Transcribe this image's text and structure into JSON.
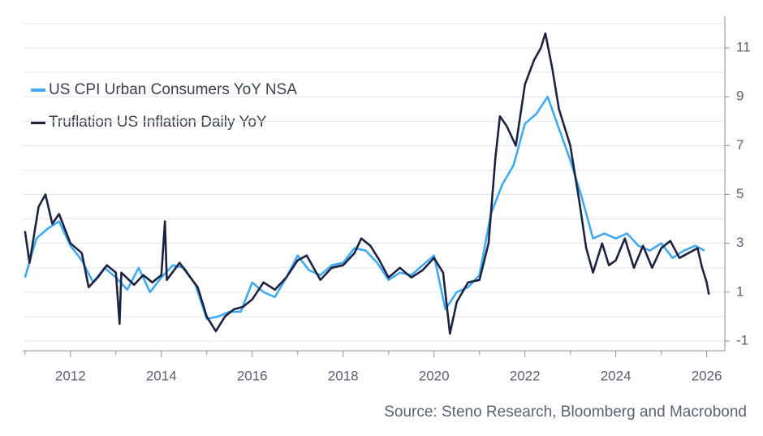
{
  "chart_data": {
    "type": "line",
    "source": "Source: Steno Research, Bloomberg and Macrobond",
    "xlim": [
      2010.95,
      2026.4
    ],
    "xticks": [
      2012,
      2014,
      2016,
      2018,
      2020,
      2022,
      2024,
      2026
    ],
    "minor_xticks": [
      2011,
      2013,
      2015,
      2017,
      2019,
      2021,
      2023,
      2025
    ],
    "ylim": [
      -1.4,
      12.3
    ],
    "yticks": [
      -1,
      1,
      3,
      5,
      7,
      9,
      11
    ],
    "minor_yticks": [
      0,
      2,
      4,
      6,
      8,
      10,
      12
    ],
    "grid": true,
    "legend": "upper left",
    "series": [
      {
        "name": "US CPI Urban Consumers YoY NSA",
        "color": "#3fa9f5",
        "x": [
          2011.0,
          2011.25,
          2011.5,
          2011.75,
          2012.0,
          2012.25,
          2012.5,
          2012.75,
          2013.0,
          2013.25,
          2013.5,
          2013.75,
          2014.0,
          2014.25,
          2014.5,
          2014.75,
          2015.0,
          2015.25,
          2015.5,
          2015.75,
          2016.0,
          2016.25,
          2016.5,
          2016.75,
          2017.0,
          2017.25,
          2017.5,
          2017.75,
          2018.0,
          2018.25,
          2018.5,
          2018.75,
          2019.0,
          2019.25,
          2019.5,
          2019.75,
          2020.0,
          2020.25,
          2020.5,
          2020.75,
          2021.0,
          2021.25,
          2021.5,
          2021.75,
          2022.0,
          2022.25,
          2022.5,
          2022.75,
          2023.0,
          2023.25,
          2023.5,
          2023.75,
          2024.0,
          2024.25,
          2024.5,
          2024.75,
          2025.0,
          2025.25,
          2025.5,
          2025.75,
          2025.95
        ],
        "values": [
          1.6,
          3.2,
          3.6,
          3.9,
          2.9,
          2.3,
          1.4,
          2.0,
          1.6,
          1.1,
          2.0,
          1.0,
          1.6,
          2.1,
          2.0,
          1.3,
          -0.1,
          0.0,
          0.2,
          0.2,
          1.4,
          1.0,
          0.8,
          1.6,
          2.5,
          1.9,
          1.7,
          2.1,
          2.2,
          2.8,
          2.7,
          2.2,
          1.5,
          1.8,
          1.7,
          2.1,
          2.5,
          0.3,
          1.0,
          1.2,
          1.7,
          4.2,
          5.4,
          6.2,
          7.9,
          8.3,
          9.0,
          7.7,
          6.4,
          4.9,
          3.2,
          3.4,
          3.2,
          3.4,
          2.9,
          2.7,
          3.0,
          2.4,
          2.7,
          2.9,
          2.7
        ]
      },
      {
        "name": "Truflation US Inflation Daily YoY",
        "color": "#1b2340",
        "x": [
          2011.0,
          2011.1,
          2011.3,
          2011.45,
          2011.6,
          2011.75,
          2012.0,
          2012.25,
          2012.4,
          2012.6,
          2012.8,
          2013.0,
          2013.08,
          2013.12,
          2013.4,
          2013.6,
          2013.8,
          2014.0,
          2014.08,
          2014.12,
          2014.4,
          2014.6,
          2014.8,
          2015.0,
          2015.2,
          2015.4,
          2015.6,
          2015.8,
          2016.0,
          2016.25,
          2016.5,
          2016.75,
          2017.0,
          2017.2,
          2017.5,
          2017.75,
          2018.0,
          2018.25,
          2018.4,
          2018.6,
          2018.8,
          2019.0,
          2019.25,
          2019.5,
          2019.75,
          2020.0,
          2020.2,
          2020.35,
          2020.5,
          2020.75,
          2021.0,
          2021.2,
          2021.35,
          2021.45,
          2021.6,
          2021.8,
          2022.0,
          2022.2,
          2022.35,
          2022.45,
          2022.6,
          2022.75,
          2023.0,
          2023.2,
          2023.35,
          2023.5,
          2023.7,
          2023.85,
          2024.0,
          2024.2,
          2024.4,
          2024.6,
          2024.8,
          2025.0,
          2025.2,
          2025.4,
          2025.6,
          2025.8,
          2025.9,
          2026.0,
          2026.05
        ],
        "values": [
          3.5,
          2.2,
          4.5,
          5.0,
          3.8,
          4.2,
          3.0,
          2.6,
          1.2,
          1.6,
          2.1,
          1.8,
          -0.3,
          1.8,
          1.3,
          1.7,
          1.4,
          1.7,
          3.9,
          1.5,
          2.2,
          1.7,
          1.2,
          0.0,
          -0.6,
          0.0,
          0.3,
          0.4,
          0.7,
          1.4,
          1.1,
          1.6,
          2.3,
          2.5,
          1.5,
          2.0,
          2.1,
          2.6,
          3.2,
          2.9,
          2.3,
          1.6,
          2.0,
          1.6,
          1.9,
          2.4,
          1.8,
          -0.7,
          0.6,
          1.4,
          1.5,
          3.0,
          6.5,
          8.2,
          7.8,
          7.0,
          9.5,
          10.5,
          11.0,
          11.6,
          10.2,
          8.5,
          7.0,
          4.7,
          2.8,
          1.8,
          3.0,
          2.1,
          2.3,
          3.2,
          2.0,
          2.9,
          2.0,
          2.8,
          3.1,
          2.4,
          2.6,
          2.8,
          2.0,
          1.4,
          0.9
        ]
      }
    ]
  }
}
